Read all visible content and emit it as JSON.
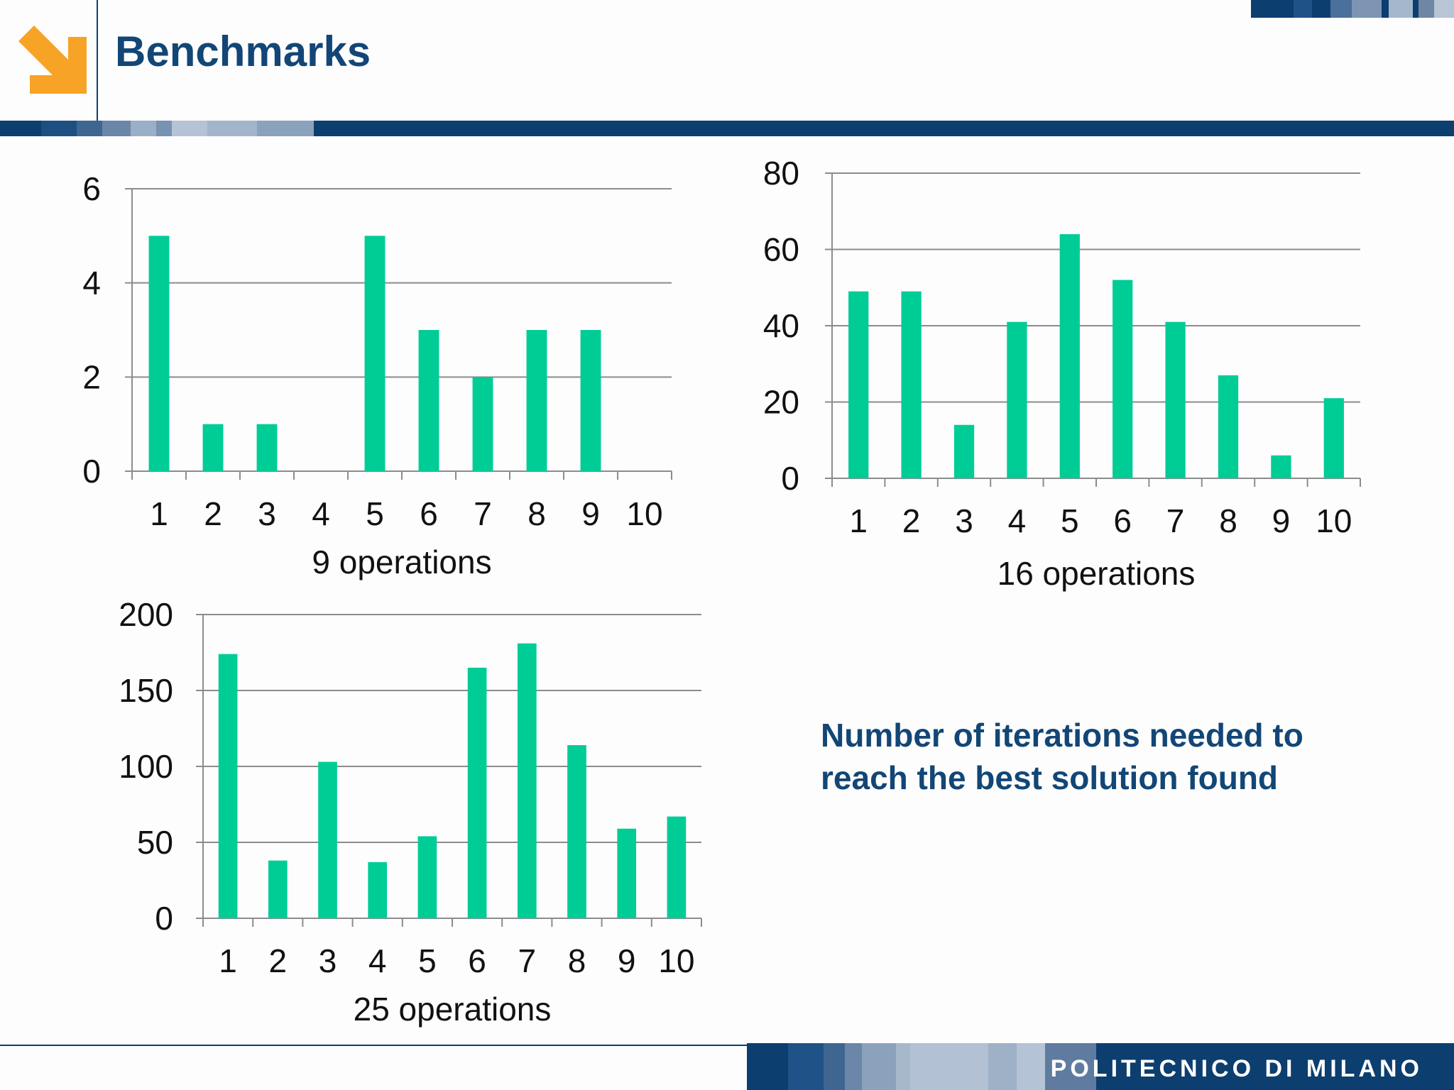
{
  "slide": {
    "title": "Benchmarks",
    "caption": "Number of iterations needed to reach the best solution found",
    "footer_brand": "POLITECNICO DI MILANO"
  },
  "colors": {
    "bar": "#00cc96",
    "brand_blue": "#124676",
    "band_dark": "#0c3e6f",
    "logo_orange": "#f7a325",
    "grid": "#8c8c8c"
  },
  "icons": {
    "logo": "arrow-down-right-icon"
  },
  "chart_data": [
    {
      "type": "bar",
      "title": "",
      "xlabel": "9 operations",
      "ylabel": "",
      "categories": [
        "1",
        "2",
        "3",
        "4",
        "5",
        "6",
        "7",
        "8",
        "9",
        "10"
      ],
      "values": [
        5,
        1,
        1,
        0,
        5,
        3,
        2,
        3,
        3,
        0
      ],
      "ylim": [
        0,
        6
      ],
      "yticks": [
        0,
        2,
        4,
        6
      ],
      "grid": true,
      "legend": "none"
    },
    {
      "type": "bar",
      "title": "",
      "xlabel": "16 operations",
      "ylabel": "",
      "categories": [
        "1",
        "2",
        "3",
        "4",
        "5",
        "6",
        "7",
        "8",
        "9",
        "10"
      ],
      "values": [
        49,
        49,
        14,
        41,
        64,
        52,
        41,
        27,
        6,
        21
      ],
      "ylim": [
        0,
        80
      ],
      "yticks": [
        0,
        20,
        40,
        60,
        80
      ],
      "grid": true,
      "legend": "none"
    },
    {
      "type": "bar",
      "title": "",
      "xlabel": "25 operations",
      "ylabel": "",
      "categories": [
        "1",
        "2",
        "3",
        "4",
        "5",
        "6",
        "7",
        "8",
        "9",
        "10"
      ],
      "values": [
        174,
        38,
        103,
        37,
        54,
        165,
        181,
        114,
        59,
        67
      ],
      "ylim": [
        0,
        200
      ],
      "yticks": [
        0,
        50,
        100,
        150,
        200
      ],
      "grid": true,
      "legend": "none"
    }
  ]
}
